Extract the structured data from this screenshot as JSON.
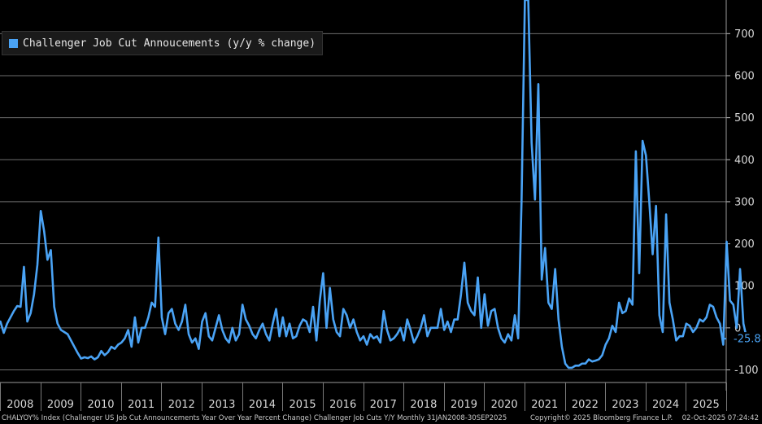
{
  "chart_data": {
    "type": "line",
    "series": [
      {
        "name": "Challenger Job Cut Annoucements (y/y % change)",
        "color": "#4aa3f5",
        "x_start": "2008-01",
        "frequency": "monthly",
        "values": [
          15,
          -12,
          10,
          25,
          40,
          52,
          50,
          145,
          15,
          35,
          80,
          150,
          278,
          230,
          162,
          185,
          50,
          10,
          -5,
          -10,
          -15,
          -30,
          -45,
          -60,
          -73,
          -70,
          -72,
          -68,
          -75,
          -70,
          -55,
          -65,
          -58,
          -45,
          -50,
          -40,
          -35,
          -25,
          -5,
          -45,
          25,
          -35,
          0,
          0,
          25,
          60,
          50,
          215,
          25,
          -15,
          35,
          45,
          10,
          -5,
          15,
          55,
          -15,
          -35,
          -25,
          -50,
          15,
          35,
          -20,
          -30,
          0,
          30,
          -5,
          -25,
          -35,
          0,
          -30,
          -15,
          55,
          20,
          5,
          -15,
          -25,
          -5,
          10,
          -15,
          -30,
          10,
          45,
          -20,
          25,
          -20,
          10,
          -25,
          -20,
          5,
          20,
          15,
          -10,
          50,
          -30,
          65,
          130,
          0,
          95,
          20,
          -10,
          -20,
          45,
          30,
          0,
          20,
          -10,
          -30,
          -20,
          -40,
          -15,
          -25,
          -20,
          -35,
          40,
          -5,
          -30,
          -25,
          -15,
          0,
          -30,
          20,
          -5,
          -35,
          -20,
          0,
          30,
          -20,
          0,
          0,
          0,
          45,
          -5,
          15,
          -10,
          20,
          20,
          80,
          155,
          60,
          40,
          30,
          120,
          0,
          80,
          5,
          40,
          45,
          0,
          -25,
          -35,
          -15,
          -30,
          30,
          -25,
          300,
          780,
          780,
          440,
          305,
          580,
          115,
          190,
          60,
          45,
          140,
          20,
          -45,
          -85,
          -95,
          -95,
          -90,
          -90,
          -85,
          -85,
          -75,
          -80,
          -78,
          -75,
          -65,
          -40,
          -25,
          5,
          -10,
          60,
          35,
          40,
          70,
          55,
          420,
          130,
          445,
          410,
          300,
          175,
          290,
          30,
          -10,
          270,
          60,
          20,
          -30,
          -20,
          -20,
          10,
          5,
          -10,
          0,
          20,
          15,
          25,
          55,
          50,
          25,
          10,
          -40,
          205,
          65,
          55,
          0,
          140,
          10,
          -25.8
        ]
      }
    ],
    "last_value_label": "-25.8",
    "ylim": [
      -130,
      780
    ],
    "y_ticks": [
      -100,
      0,
      100,
      200,
      300,
      400,
      500,
      600,
      700
    ],
    "y_tick_labels": [
      "-100",
      "0",
      "100",
      "200",
      "300",
      "400",
      "500",
      "600",
      "700"
    ],
    "x_range": [
      "2008-01",
      "2025-12"
    ],
    "x_year_labels": [
      "2008",
      "2009",
      "2010",
      "2011",
      "2012",
      "2013",
      "2014",
      "2015",
      "2016",
      "2017",
      "2018",
      "2019",
      "2020",
      "2021",
      "2022",
      "2023",
      "2024",
      "2025"
    ],
    "title": "",
    "xlabel": "",
    "ylabel": "",
    "grid": true,
    "legend_position": "top-left",
    "y_axis_side": "right",
    "colors": {
      "background": "#000000",
      "line": "#4aa3f5",
      "grid": "#6e6e6e",
      "text": "#d8d8d8"
    }
  },
  "legend": {
    "label": "Challenger Job Cut Annoucements (y/y % change)"
  },
  "footer": {
    "source": "CHALYOY% Index (Challenger US Job Cut Announcements Year Over Year Percent Change) Challenger Job Cuts Y/Y Monthly 31JAN2008-30SEP2025",
    "copyright": "Copyright© 2025 Bloomberg Finance L.P.",
    "date": "02-Oct-2025 07:24:42"
  }
}
